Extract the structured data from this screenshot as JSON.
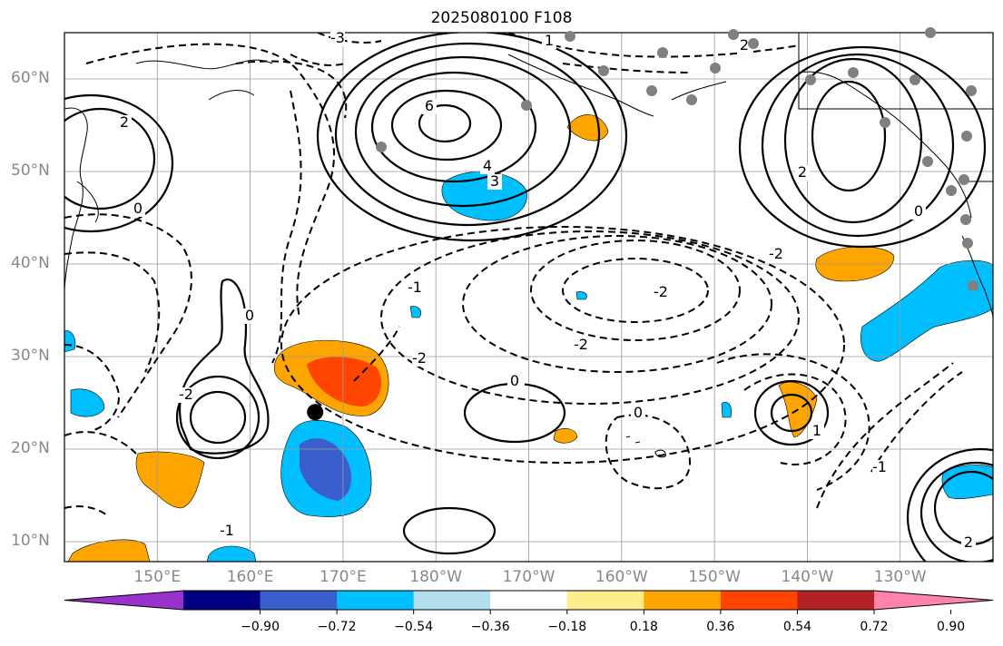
{
  "title": "2025080100 F108",
  "lat_labels": [
    {
      "text": "60°N",
      "lat": 60
    },
    {
      "text": "50°N",
      "lat": 50
    },
    {
      "text": "40°N",
      "lat": 40
    },
    {
      "text": "30°N",
      "lat": 30
    },
    {
      "text": "20°N",
      "lat": 20
    },
    {
      "text": "10°N",
      "lat": 10
    }
  ],
  "lon_labels": [
    {
      "text": "150°E",
      "lon": 150
    },
    {
      "text": "160°E",
      "lon": 160
    },
    {
      "text": "170°E",
      "lon": 170
    },
    {
      "text": "180°W",
      "lon": 180
    },
    {
      "text": "170°W",
      "lon": 190
    },
    {
      "text": "160°W",
      "lon": 200
    },
    {
      "text": "150°W",
      "lon": 210
    },
    {
      "text": "140°W",
      "lon": 220
    },
    {
      "text": "130°W",
      "lon": 230
    }
  ],
  "colorbar": {
    "colors": [
      "#9932CC",
      "#000080",
      "#3A5FCD",
      "#00BFFF",
      "#B2DFEE",
      "#FFFFFF",
      "#FFEC8B",
      "#FFA500",
      "#FF4500",
      "#B22222",
      "#FF82AB"
    ],
    "labels": [
      "−0.90",
      "−0.72",
      "−0.54",
      "−0.36",
      "−0.18",
      "0.18",
      "0.36",
      "0.54",
      "0.72",
      "0.90"
    ]
  },
  "contour_labels": [
    "2",
    "0",
    "3",
    "-2",
    "-1",
    "6",
    "4",
    "-3",
    "1",
    "2",
    "-2",
    "0",
    "-2",
    "-1",
    "0",
    "0",
    "1",
    "-2",
    "-1",
    "0",
    "2",
    "0",
    "-2",
    "2"
  ],
  "marker": {
    "lat": 24,
    "lon": 167,
    "color": "#000000"
  }
}
